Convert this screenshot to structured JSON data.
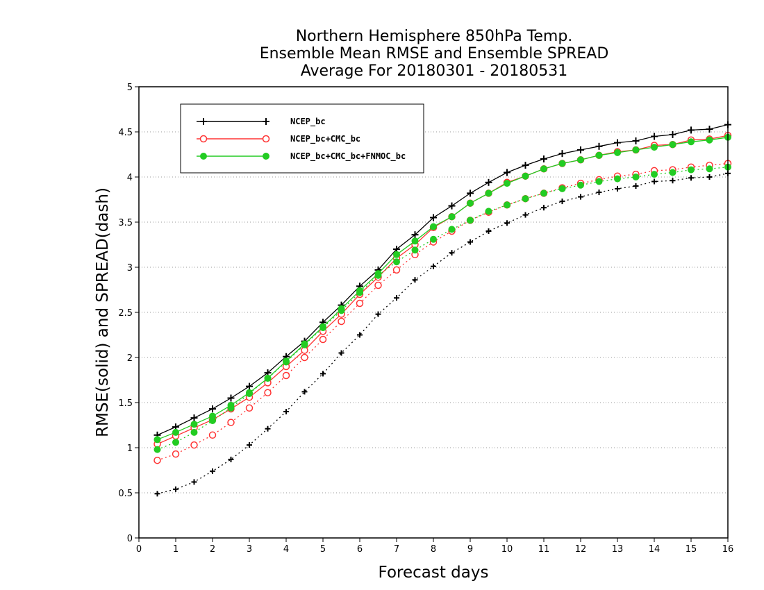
{
  "chart_data": {
    "type": "line",
    "title": [
      "Northern Hemisphere 850hPa Temp.",
      "Ensemble Mean RMSE and Ensemble SPREAD",
      "Average For 20180301 - 20180531"
    ],
    "xlabel": "Forecast days",
    "ylabel": "RMSE(solid) and SPREAD(dash)",
    "xlim": [
      0,
      16
    ],
    "ylim": [
      0,
      5
    ],
    "xticks": [
      "0",
      "1",
      "2",
      "3",
      "4",
      "5",
      "6",
      "7",
      "8",
      "9",
      "10",
      "11",
      "12",
      "13",
      "14",
      "15",
      "16"
    ],
    "yticks": [
      "0",
      "0.5",
      "1",
      "1.5",
      "2",
      "2.5",
      "3",
      "3.5",
      "4",
      "4.5",
      "5"
    ],
    "grid": "horizontal dotted",
    "legend_position": "top-left",
    "x": [
      0.5,
      1,
      1.5,
      2,
      2.5,
      3,
      3.5,
      4,
      4.5,
      5,
      5.5,
      6,
      6.5,
      7,
      7.5,
      8,
      8.5,
      9,
      9.5,
      10,
      10.5,
      11,
      11.5,
      12,
      12.5,
      13,
      13.5,
      14,
      14.5,
      15,
      15.5,
      16
    ],
    "series": [
      {
        "name": "NCEP_bc",
        "color": "#000000",
        "marker": "plus",
        "rmse": [
          1.14,
          1.23,
          1.33,
          1.43,
          1.55,
          1.68,
          1.83,
          2.01,
          2.18,
          2.39,
          2.58,
          2.79,
          2.97,
          3.2,
          3.36,
          3.55,
          3.68,
          3.82,
          3.94,
          4.05,
          4.13,
          4.2,
          4.26,
          4.3,
          4.34,
          4.38,
          4.4,
          4.45,
          4.47,
          4.52,
          4.53,
          4.58
        ],
        "spread": [
          0.49,
          0.54,
          0.62,
          0.74,
          0.87,
          1.03,
          1.21,
          1.4,
          1.62,
          1.82,
          2.05,
          2.25,
          2.48,
          2.66,
          2.86,
          3.01,
          3.16,
          3.28,
          3.4,
          3.49,
          3.58,
          3.66,
          3.73,
          3.78,
          3.83,
          3.87,
          3.9,
          3.95,
          3.96,
          3.99,
          4.0,
          4.04
        ]
      },
      {
        "name": "NCEP_bc+CMC_bc",
        "color": "#ff3333",
        "marker": "open-circle",
        "rmse": [
          1.04,
          1.13,
          1.22,
          1.31,
          1.43,
          1.56,
          1.72,
          1.9,
          2.08,
          2.29,
          2.48,
          2.7,
          2.89,
          3.1,
          3.25,
          3.44,
          3.56,
          3.71,
          3.82,
          3.94,
          4.01,
          4.09,
          4.15,
          4.19,
          4.24,
          4.28,
          4.3,
          4.35,
          4.36,
          4.41,
          4.42,
          4.46
        ],
        "spread": [
          0.86,
          0.93,
          1.03,
          1.14,
          1.28,
          1.44,
          1.61,
          1.8,
          2.0,
          2.2,
          2.4,
          2.6,
          2.8,
          2.97,
          3.14,
          3.28,
          3.4,
          3.52,
          3.61,
          3.69,
          3.76,
          3.82,
          3.88,
          3.93,
          3.97,
          4.01,
          4.03,
          4.07,
          4.08,
          4.11,
          4.13,
          4.15
        ]
      },
      {
        "name": "NCEP_bc+CMC_bc+FNMOC_bc",
        "color": "#22cc22",
        "marker": "filled-circle",
        "rmse": [
          1.09,
          1.17,
          1.26,
          1.35,
          1.47,
          1.61,
          1.77,
          1.96,
          2.15,
          2.34,
          2.54,
          2.74,
          2.93,
          3.14,
          3.29,
          3.45,
          3.56,
          3.71,
          3.82,
          3.93,
          4.01,
          4.09,
          4.15,
          4.19,
          4.24,
          4.27,
          4.3,
          4.33,
          4.36,
          4.39,
          4.41,
          4.44
        ],
        "spread": [
          0.98,
          1.06,
          1.17,
          1.3,
          1.44,
          1.6,
          1.77,
          1.95,
          2.14,
          2.33,
          2.52,
          2.72,
          2.91,
          3.06,
          3.19,
          3.31,
          3.42,
          3.52,
          3.62,
          3.69,
          3.76,
          3.82,
          3.87,
          3.91,
          3.95,
          3.98,
          4.0,
          4.03,
          4.05,
          4.08,
          4.09,
          4.11
        ]
      }
    ]
  }
}
